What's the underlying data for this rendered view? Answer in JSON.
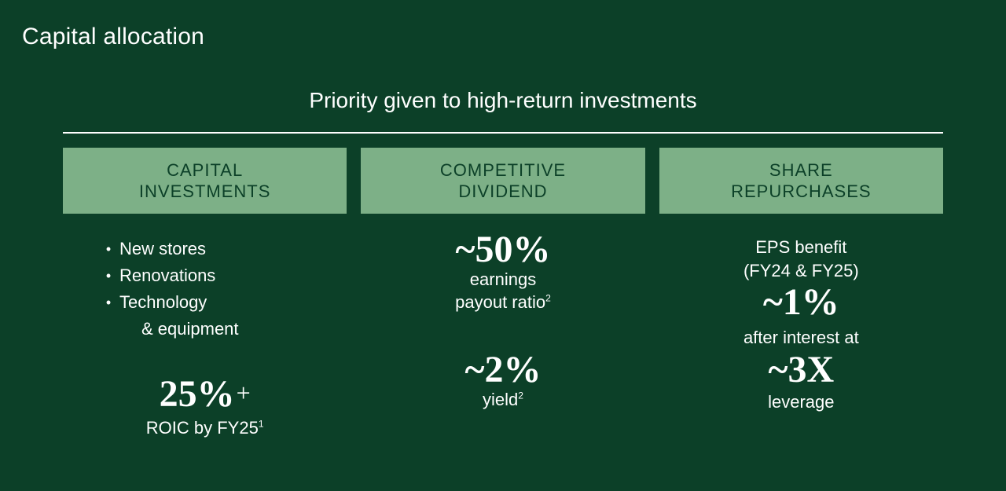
{
  "title": "Capital allocation",
  "subtitle": "Priority given to high-return investments",
  "styling": {
    "background_color": "#0c4028",
    "text_color": "#ffffff",
    "header_bg": "#7db087",
    "header_text": "#0c4028",
    "divider_color": "#ffffff",
    "big_number_fontsize_pt": 36,
    "body_fontsize_pt": 16,
    "title_fontsize_pt": 22,
    "subtitle_fontsize_pt": 21
  },
  "columns": {
    "capital": {
      "header": "CAPITAL\nINVESTMENTS",
      "bullets": [
        "New stores",
        "Renovations",
        "Technology",
        "& equipment"
      ],
      "bullet_wrap_index": 3,
      "metric_value": "25%",
      "metric_suffix": "+",
      "metric_label_prefix": "ROIC by FY25",
      "metric_footnote": "1"
    },
    "dividend": {
      "header": "COMPETITIVE\nDIVIDEND",
      "top_value": "~50%",
      "top_label_line1": "earnings",
      "top_label_line2_prefix": "payout ratio",
      "top_footnote": "2",
      "bottom_value": "~2%",
      "bottom_label_prefix": "yield",
      "bottom_footnote": "2"
    },
    "repurchases": {
      "header": "SHARE\nREPURCHASES",
      "line1": "EPS benefit",
      "line2": "(FY24 & FY25)",
      "value1": "~1%",
      "line3": "after interest at",
      "value2": "~3X",
      "line4": "leverage"
    }
  }
}
